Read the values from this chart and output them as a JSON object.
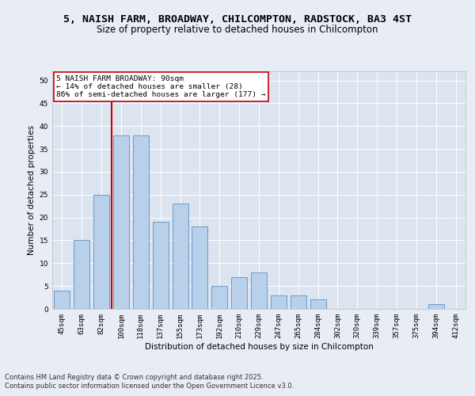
{
  "title1": "5, NAISH FARM, BROADWAY, CHILCOMPTON, RADSTOCK, BA3 4ST",
  "title2": "Size of property relative to detached houses in Chilcompton",
  "xlabel": "Distribution of detached houses by size in Chilcompton",
  "ylabel": "Number of detached properties",
  "categories": [
    "45sqm",
    "63sqm",
    "82sqm",
    "100sqm",
    "118sqm",
    "137sqm",
    "155sqm",
    "173sqm",
    "192sqm",
    "210sqm",
    "229sqm",
    "247sqm",
    "265sqm",
    "284sqm",
    "302sqm",
    "320sqm",
    "339sqm",
    "357sqm",
    "375sqm",
    "394sqm",
    "412sqm"
  ],
  "values": [
    4,
    15,
    25,
    38,
    38,
    19,
    23,
    18,
    5,
    7,
    8,
    3,
    3,
    2,
    0,
    0,
    0,
    0,
    0,
    1,
    0
  ],
  "bar_color": "#b8d0ea",
  "bar_edge_color": "#5b8fc9",
  "vline_x_idx": 2,
  "vline_color": "#cc0000",
  "annotation_text": "5 NAISH FARM BROADWAY: 90sqm\n← 14% of detached houses are smaller (28)\n86% of semi-detached houses are larger (177) →",
  "annotation_box_color": "#ffffff",
  "annotation_box_edge": "#cc0000",
  "ylim": [
    0,
    52
  ],
  "yticks": [
    0,
    5,
    10,
    15,
    20,
    25,
    30,
    35,
    40,
    45,
    50
  ],
  "bg_color": "#e8edf5",
  "plot_bg_color": "#dce4f0",
  "grid_color": "#ffffff",
  "footer1": "Contains HM Land Registry data © Crown copyright and database right 2025.",
  "footer2": "Contains public sector information licensed under the Open Government Licence v3.0.",
  "title1_fontsize": 9.5,
  "title2_fontsize": 8.5,
  "axis_label_fontsize": 7.5,
  "tick_fontsize": 6.5,
  "annotation_fontsize": 6.8,
  "footer_fontsize": 6.0
}
